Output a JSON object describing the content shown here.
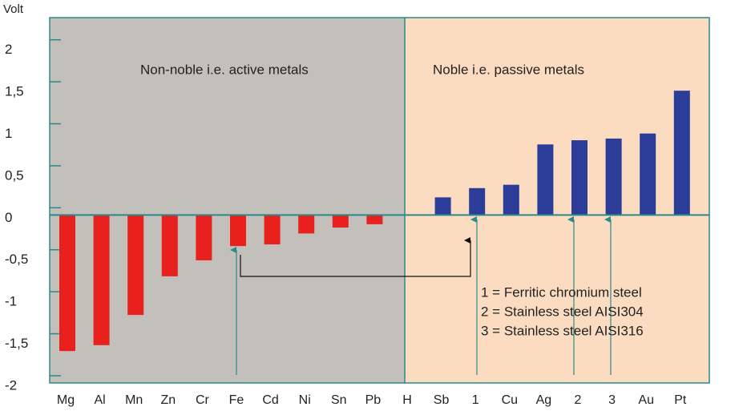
{
  "chart_data": {
    "type": "bar",
    "y_label": "Volt",
    "categories": [
      "Mg",
      "Al",
      "Mn",
      "Zn",
      "Cr",
      "Fe",
      "Cd",
      "Ni",
      "Sn",
      "Pb",
      "H",
      "Sb",
      "1",
      "Cu",
      "Ag",
      "2",
      "3",
      "Au",
      "Pt"
    ],
    "values": [
      -1.62,
      -1.55,
      -1.19,
      -0.73,
      -0.54,
      -0.37,
      -0.35,
      -0.22,
      -0.15,
      -0.11,
      0,
      0.21,
      0.32,
      0.36,
      0.84,
      0.89,
      0.91,
      0.97,
      1.48
    ],
    "color_negative": "#e8201e",
    "color_positive": "#2b3d98",
    "ylim": [
      -2,
      2.35
    ],
    "yticks": [
      -2,
      {
        "value": -1.5,
        "label": "-1,5"
      },
      -1,
      {
        "value": -0.5,
        "label": "-0,5"
      },
      0,
      {
        "value": 0.5,
        "label": "0,5"
      },
      1,
      {
        "value": 1.5,
        "label": "1,5"
      },
      2
    ],
    "annotations": [
      "Non-noble i.e. active metals",
      "Noble i.e. passive metals",
      "1 = Ferritic chromium steel",
      "2 = Stainless steel AISI304",
      "3 = Stainless steel AISI316"
    ]
  }
}
